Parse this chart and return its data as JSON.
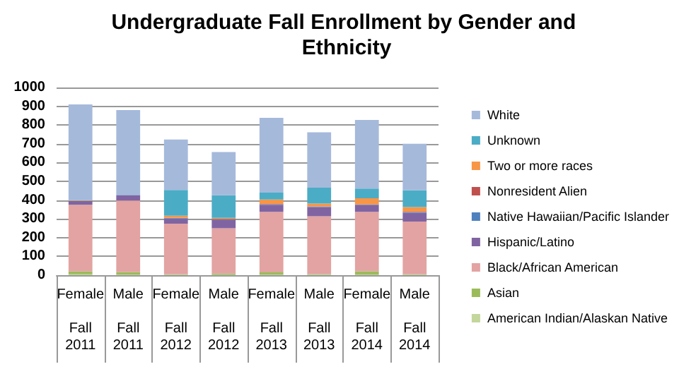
{
  "chart_data": {
    "type": "bar",
    "title": "Undergraduate Fall Enrollment by Gender and Ethnicity",
    "categories": [
      "Female\n\nFall\n2011",
      "Male\n\nFall\n2011",
      "Female\n\nFall\n2012",
      "Male\n\nFall\n2012",
      "Female\n\nFall\n2013",
      "Male\n\nFall\n2013",
      "Female\n\nFall\n2014",
      "Male\n\nFall\n2014"
    ],
    "stacked": true,
    "series": [
      {
        "name": "American Indian/Alaskan Native",
        "color": "#c3d69b",
        "values": [
          5,
          3,
          2,
          2,
          3,
          2,
          4,
          2
        ]
      },
      {
        "name": "Asian",
        "color": "#9bbb59",
        "values": [
          15,
          13,
          3,
          6,
          12,
          4,
          17,
          3
        ]
      },
      {
        "name": "Black/African American",
        "color": "#e2a3a2",
        "values": [
          355,
          382,
          269,
          242,
          322,
          308,
          316,
          281
        ]
      },
      {
        "name": "Hispanic/Latino",
        "color": "#8064a2",
        "values": [
          20,
          28,
          28,
          45,
          38,
          49,
          35,
          47
        ]
      },
      {
        "name": "Native Hawaiian/Pacific Islander",
        "color": "#4f81bd",
        "values": [
          0,
          2,
          3,
          3,
          3,
          2,
          3,
          3
        ]
      },
      {
        "name": "Nonresident Alien",
        "color": "#c0504d",
        "values": [
          0,
          0,
          0,
          2,
          2,
          2,
          3,
          2
        ]
      },
      {
        "name": "Two or more races",
        "color": "#f79646",
        "values": [
          3,
          0,
          12,
          5,
          23,
          15,
          32,
          25
        ]
      },
      {
        "name": "Unknown",
        "color": "#4bacc6",
        "values": [
          2,
          0,
          137,
          121,
          37,
          84,
          51,
          89
        ]
      },
      {
        "name": "White",
        "color": "#a5b9db",
        "values": [
          510,
          452,
          269,
          230,
          398,
          295,
          366,
          248
        ]
      }
    ],
    "ylim": [
      0,
      1000
    ],
    "yticks": [
      0,
      100,
      200,
      300,
      400,
      500,
      600,
      700,
      800,
      900,
      1000
    ],
    "grid": "y",
    "legend": "right"
  }
}
